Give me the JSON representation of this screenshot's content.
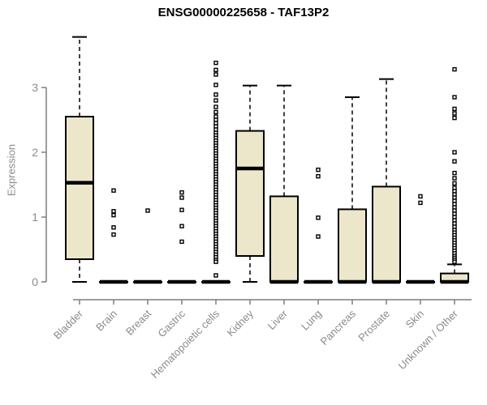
{
  "colors": {
    "box_fill": "#ece7cb",
    "box_border": "#000000",
    "axis": "#7f7f7f",
    "axis_text": "#8b8b8b",
    "title": "#000000"
  },
  "chart_data": {
    "type": "boxplot",
    "title": "ENSG00000225658 - TAF13P2",
    "ylabel": "Expression",
    "xlabel": "",
    "ylim": [
      0,
      3.9
    ],
    "yticks": [
      0,
      1,
      2,
      3
    ],
    "grid": false,
    "legend": "none",
    "categories": [
      "Bladder",
      "Brain",
      "Breast",
      "Gastric",
      "Hematopoietic cells",
      "Kidney",
      "Liver",
      "Lung",
      "Pancreas",
      "Prostate",
      "Skin",
      "Unknown / Other"
    ],
    "boxes": [
      {
        "category": "Bladder",
        "low": 0,
        "q1": 0.35,
        "median": 1.53,
        "q3": 2.55,
        "high": 3.78,
        "outliers": []
      },
      {
        "category": "Brain",
        "low": 0,
        "q1": 0,
        "median": 0,
        "q3": 0,
        "high": 0,
        "outliers": [
          1.41,
          1.09,
          1.03,
          0.84,
          0.73
        ]
      },
      {
        "category": "Breast",
        "low": 0,
        "q1": 0,
        "median": 0,
        "q3": 0,
        "high": 0,
        "outliers": [
          1.1
        ]
      },
      {
        "category": "Gastric",
        "low": 0,
        "q1": 0,
        "median": 0,
        "q3": 0,
        "high": 0,
        "outliers": [
          1.38,
          1.3,
          1.11,
          0.86,
          0.62
        ]
      },
      {
        "category": "Hematopoietic cells",
        "low": 0,
        "q1": 0,
        "median": 0,
        "q3": 0,
        "high": 0,
        "outliers": [
          3.38,
          3.27,
          3.2,
          3.04,
          2.89,
          2.8,
          2.7,
          2.62,
          2.55,
          2.5,
          2.45,
          2.4,
          2.35,
          2.3,
          2.26,
          2.22,
          2.18,
          2.14,
          2.1,
          2.06,
          2.02,
          1.98,
          1.94,
          1.9,
          1.86,
          1.82,
          1.78,
          1.74,
          1.7,
          1.66,
          1.62,
          1.58,
          1.54,
          1.5,
          1.46,
          1.42,
          1.38,
          1.34,
          1.3,
          1.26,
          1.22,
          1.18,
          1.14,
          1.1,
          1.06,
          1.02,
          0.98,
          0.94,
          0.9,
          0.86,
          0.82,
          0.78,
          0.74,
          0.7,
          0.66,
          0.62,
          0.58,
          0.54,
          0.5,
          0.46,
          0.42,
          0.38,
          0.34,
          0.31,
          0.1
        ]
      },
      {
        "category": "Kidney",
        "low": 0,
        "q1": 0.4,
        "median": 1.75,
        "q3": 2.33,
        "high": 3.03,
        "outliers": []
      },
      {
        "category": "Liver",
        "low": 0,
        "q1": 0,
        "median": 0,
        "q3": 1.32,
        "high": 3.03,
        "outliers": []
      },
      {
        "category": "Lung",
        "low": 0,
        "q1": 0,
        "median": 0,
        "q3": 0,
        "high": 0,
        "outliers": [
          1.73,
          1.63,
          0.99,
          0.7
        ]
      },
      {
        "category": "Pancreas",
        "low": 0,
        "q1": 0,
        "median": 0,
        "q3": 1.12,
        "high": 2.85,
        "outliers": []
      },
      {
        "category": "Prostate",
        "low": 0,
        "q1": 0,
        "median": 0,
        "q3": 1.47,
        "high": 3.13,
        "outliers": []
      },
      {
        "category": "Skin",
        "low": 0,
        "q1": 0,
        "median": 0,
        "q3": 0,
        "high": 0,
        "outliers": [
          1.32,
          1.22
        ]
      },
      {
        "category": "Unknown / Other",
        "low": 0,
        "q1": 0,
        "median": 0,
        "q3": 0.13,
        "high": 0.27,
        "outliers": [
          3.28,
          2.85,
          2.67,
          2.6,
          2.53,
          2.0,
          1.86,
          1.68,
          1.6,
          1.52,
          1.45,
          1.4,
          1.35,
          1.3,
          1.25,
          1.2,
          1.15,
          1.1,
          1.05,
          1.0,
          0.95,
          0.9,
          0.85,
          0.8,
          0.76,
          0.72,
          0.68,
          0.64,
          0.6,
          0.56,
          0.52,
          0.48,
          0.44,
          0.4,
          0.37,
          0.34,
          0.31
        ]
      }
    ]
  }
}
